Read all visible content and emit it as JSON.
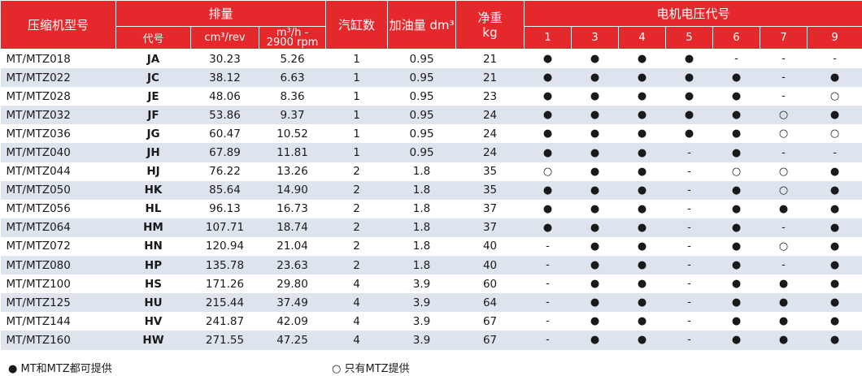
{
  "header": {
    "model": "压缩机型号",
    "displacement": "排量",
    "code": "代号",
    "cm3rev": "cm³/rev",
    "m3h_a": "m³/h -",
    "m3h_b": "2900 rpm",
    "cylinders": "汽缸数",
    "oil": "加油量 dm³",
    "weight_a": "净重",
    "weight_b": "kg",
    "voltage": "电机电压代号",
    "voltage_codes": [
      "1",
      "3",
      "4",
      "5",
      "6",
      "7",
      "9"
    ]
  },
  "rows": [
    {
      "model": "MT/MTZ018",
      "code": "JA",
      "cm3": "30.23",
      "m3h": "5.26",
      "cyl": "1",
      "oil": "0.95",
      "kg": "21",
      "v": [
        "●",
        "●",
        "●",
        "●",
        "-",
        "-",
        "-"
      ]
    },
    {
      "model": "MT/MTZ022",
      "code": "JC",
      "cm3": "38.12",
      "m3h": "6.63",
      "cyl": "1",
      "oil": "0.95",
      "kg": "21",
      "v": [
        "●",
        "●",
        "●",
        "●",
        "●",
        "-",
        "●"
      ]
    },
    {
      "model": "MT/MTZ028",
      "code": "JE",
      "cm3": "48.06",
      "m3h": "8.36",
      "cyl": "1",
      "oil": "0.95",
      "kg": "23",
      "v": [
        "●",
        "●",
        "●",
        "●",
        "●",
        "-",
        "○"
      ]
    },
    {
      "model": "MT/MTZ032",
      "code": "JF",
      "cm3": "53.86",
      "m3h": "9.37",
      "cyl": "1",
      "oil": "0.95",
      "kg": "24",
      "v": [
        "●",
        "●",
        "●",
        "●",
        "●",
        "○",
        "●"
      ]
    },
    {
      "model": "MT/MTZ036",
      "code": "JG",
      "cm3": "60.47",
      "m3h": "10.52",
      "cyl": "1",
      "oil": "0.95",
      "kg": "24",
      "v": [
        "●",
        "●",
        "●",
        "●",
        "●",
        "○",
        "○"
      ]
    },
    {
      "model": "MT/MTZ040",
      "code": "JH",
      "cm3": "67.89",
      "m3h": "11.81",
      "cyl": "1",
      "oil": "0.95",
      "kg": "24",
      "v": [
        "●",
        "●",
        "●",
        "-",
        "●",
        "-",
        "-"
      ]
    },
    {
      "model": "MT/MTZ044",
      "code": "HJ",
      "cm3": "76.22",
      "m3h": "13.26",
      "cyl": "2",
      "oil": "1.8",
      "kg": "35",
      "v": [
        "○",
        "●",
        "●",
        "-",
        "○",
        "○",
        "●"
      ]
    },
    {
      "model": "MT/MTZ050",
      "code": "HK",
      "cm3": "85.64",
      "m3h": "14.90",
      "cyl": "2",
      "oil": "1.8",
      "kg": "35",
      "v": [
        "●",
        "●",
        "●",
        "-",
        "●",
        "○",
        "●"
      ]
    },
    {
      "model": "MT/MTZ056",
      "code": "HL",
      "cm3": "96.13",
      "m3h": "16.73",
      "cyl": "2",
      "oil": "1.8",
      "kg": "37",
      "v": [
        "●",
        "●",
        "●",
        "-",
        "●",
        "●",
        "●"
      ]
    },
    {
      "model": "MT/MTZ064",
      "code": "HM",
      "cm3": "107.71",
      "m3h": "18.74",
      "cyl": "2",
      "oil": "1.8",
      "kg": "37",
      "v": [
        "●",
        "●",
        "●",
        "-",
        "●",
        "-",
        "●"
      ]
    },
    {
      "model": "MT/MTZ072",
      "code": "HN",
      "cm3": "120.94",
      "m3h": "21.04",
      "cyl": "2",
      "oil": "1.8",
      "kg": "40",
      "v": [
        "-",
        "●",
        "●",
        "-",
        "●",
        "○",
        "●"
      ]
    },
    {
      "model": "MT/MTZ080",
      "code": "HP",
      "cm3": "135.78",
      "m3h": "23.63",
      "cyl": "2",
      "oil": "1.8",
      "kg": "40",
      "v": [
        "-",
        "●",
        "●",
        "-",
        "●",
        "-",
        "●"
      ]
    },
    {
      "model": "MT/MTZ100",
      "code": "HS",
      "cm3": "171.26",
      "m3h": "29.80",
      "cyl": "4",
      "oil": "3.9",
      "kg": "60",
      "v": [
        "-",
        "●",
        "●",
        "-",
        "●",
        "●",
        "●"
      ]
    },
    {
      "model": "MT/MTZ125",
      "code": "HU",
      "cm3": "215.44",
      "m3h": "37.49",
      "cyl": "4",
      "oil": "3.9",
      "kg": "64",
      "v": [
        "-",
        "●",
        "●",
        "-",
        "●",
        "●",
        "●"
      ]
    },
    {
      "model": "MT/MTZ144",
      "code": "HV",
      "cm3": "241.87",
      "m3h": "42.09",
      "cyl": "4",
      "oil": "3.9",
      "kg": "67",
      "v": [
        "-",
        "●",
        "●",
        "-",
        "●",
        "●",
        "●"
      ]
    },
    {
      "model": "MT/MTZ160",
      "code": "HW",
      "cm3": "271.55",
      "m3h": "47.25",
      "cyl": "4",
      "oil": "3.9",
      "kg": "67",
      "v": [
        "-",
        "●",
        "●",
        "-",
        "●",
        "●",
        "●"
      ]
    }
  ],
  "legend": {
    "filled": "●  MT和MTZ都可提供",
    "hollow": "○  只有MTZ提供"
  },
  "colors": {
    "header_bg": "#e5282b",
    "stripe": "#dde4ee"
  }
}
